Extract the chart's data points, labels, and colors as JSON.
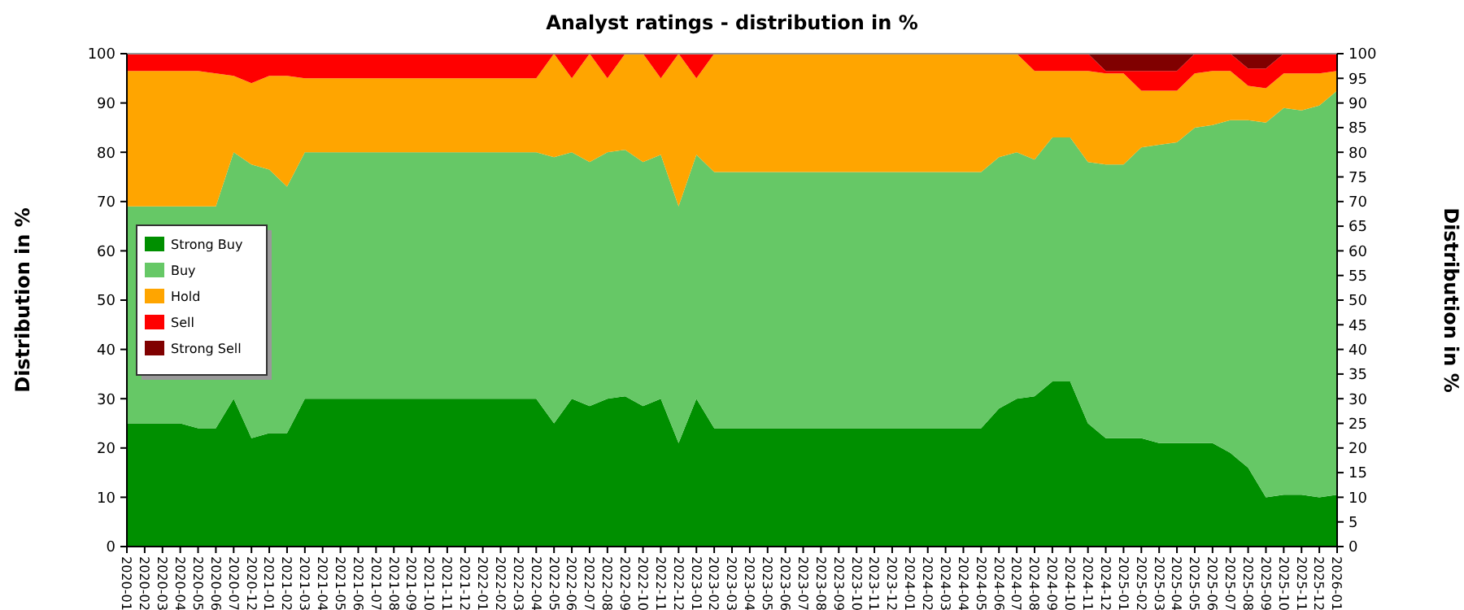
{
  "chart_data": {
    "type": "area",
    "stacked": true,
    "title": "Analyst ratings - distribution in %",
    "ylabel": "Distribution in %",
    "y2label": "Distribution in %",
    "categories": [
      "2020-01",
      "2020-02",
      "2020-03",
      "2020-04",
      "2020-05",
      "2020-06",
      "2020-07",
      "2020-12",
      "2021-01",
      "2021-02",
      "2021-03",
      "2021-04",
      "2021-05",
      "2021-06",
      "2021-07",
      "2021-08",
      "2021-09",
      "2021-10",
      "2021-11",
      "2021-12",
      "2022-01",
      "2022-02",
      "2022-03",
      "2022-04",
      "2022-05",
      "2022-06",
      "2022-07",
      "2022-08",
      "2022-09",
      "2022-10",
      "2022-11",
      "2022-12",
      "2023-01",
      "2023-02",
      "2023-03",
      "2023-04",
      "2023-05",
      "2023-06",
      "2023-07",
      "2023-08",
      "2023-09",
      "2023-10",
      "2023-11",
      "2023-12",
      "2024-01",
      "2024-02",
      "2024-03",
      "2024-04",
      "2024-05",
      "2024-06",
      "2024-07",
      "2024-08",
      "2024-09",
      "2024-10",
      "2024-11",
      "2024-12",
      "2025-01",
      "2025-02",
      "2025-03",
      "2025-04",
      "2025-05",
      "2025-06",
      "2025-07",
      "2025-08",
      "2025-09",
      "2025-10",
      "2025-11",
      "2025-12",
      "2026-01"
    ],
    "series": [
      {
        "name": "Strong Buy",
        "color": "#008f00",
        "values": [
          25,
          25,
          25,
          25,
          24,
          24,
          30,
          22,
          23,
          23,
          30,
          30,
          30,
          30,
          30,
          30,
          30,
          30,
          30,
          30,
          30,
          30,
          30,
          30,
          25,
          30,
          28.5,
          30,
          30.5,
          28.5,
          30,
          21,
          30,
          24,
          24,
          24,
          24,
          24,
          24,
          24,
          24,
          24,
          24,
          24,
          24,
          24,
          24,
          24,
          24,
          28,
          30,
          30.5,
          33.5,
          33.5,
          25,
          22,
          22,
          22,
          21,
          21,
          21,
          21,
          19,
          16,
          10,
          10.5,
          10.5,
          10,
          10.5
        ]
      },
      {
        "name": "Buy",
        "color": "#66c866",
        "values": [
          44,
          44,
          44,
          44,
          45,
          45,
          50,
          55.5,
          53.5,
          50,
          50,
          50,
          50,
          50,
          50,
          50,
          50,
          50,
          50,
          50,
          50,
          50,
          50,
          50,
          54,
          50,
          49.5,
          50,
          50,
          49.5,
          49.5,
          48,
          49.5,
          52,
          52,
          52,
          52,
          52,
          52,
          52,
          52,
          52,
          52,
          52,
          52,
          52,
          52,
          52,
          52,
          51,
          50,
          48,
          49.5,
          49.5,
          53,
          55.5,
          55.5,
          59,
          60.5,
          61,
          64,
          64.5,
          67.5,
          70.5,
          76,
          78.5,
          78,
          79.5,
          82
        ]
      },
      {
        "name": "Hold",
        "color": "#ffa500",
        "values": [
          27.5,
          27.5,
          27.5,
          27.5,
          27.5,
          27,
          15.5,
          16.5,
          19,
          22.5,
          15,
          15,
          15,
          15,
          15,
          15,
          15,
          15,
          15,
          15,
          15,
          15,
          15,
          15,
          21,
          15,
          22,
          15,
          19.5,
          22,
          15.5,
          31,
          15.5,
          24,
          24,
          24,
          24,
          24,
          24,
          24,
          24,
          24,
          24,
          24,
          24,
          24,
          24,
          24,
          24,
          21,
          20,
          18,
          13.5,
          13.5,
          18.5,
          18.5,
          18.5,
          11.5,
          11,
          10.5,
          11,
          11,
          10,
          7,
          7,
          7,
          7.5,
          6.5,
          4
        ]
      },
      {
        "name": "Sell",
        "color": "#ff0000",
        "values": [
          3.5,
          3.5,
          3.5,
          3.5,
          3.5,
          4,
          4.5,
          6,
          4.5,
          4.5,
          5,
          5,
          5,
          5,
          5,
          5,
          5,
          5,
          5,
          5,
          5,
          5,
          5,
          5,
          0,
          5,
          0,
          5,
          0,
          0,
          5,
          0,
          5,
          0,
          0,
          0,
          0,
          0,
          0,
          0,
          0,
          0,
          0,
          0,
          0,
          0,
          0,
          0,
          0,
          0,
          0,
          3.5,
          3.5,
          3.5,
          3.5,
          0.5,
          0.5,
          4,
          4,
          4,
          4,
          3.5,
          3.5,
          3.5,
          4,
          4,
          4,
          4,
          3.5
        ]
      },
      {
        "name": "Strong Sell",
        "color": "#800000",
        "values": [
          0,
          0,
          0,
          0,
          0,
          0,
          0,
          0,
          0,
          0,
          0,
          0,
          0,
          0,
          0,
          0,
          0,
          0,
          0,
          0,
          0,
          0,
          0,
          0,
          0,
          0,
          0,
          0,
          0,
          0,
          0,
          0,
          0,
          0,
          0,
          0,
          0,
          0,
          0,
          0,
          0,
          0,
          0,
          0,
          0,
          0,
          0,
          0,
          0,
          0,
          0,
          0,
          0,
          0,
          0,
          3.5,
          3.5,
          3.5,
          3.5,
          3.5,
          0,
          0,
          0,
          3,
          3,
          0,
          0,
          0,
          0
        ]
      }
    ],
    "ylim": [
      0,
      100
    ],
    "yticks": [
      0,
      10,
      20,
      30,
      40,
      50,
      60,
      70,
      80,
      90,
      100
    ],
    "y2lim": [
      0,
      100
    ],
    "y2ticks": [
      0,
      5,
      10,
      15,
      20,
      25,
      30,
      35,
      40,
      45,
      50,
      55,
      60,
      65,
      70,
      75,
      80,
      85,
      90,
      95,
      100
    ],
    "grid": "y",
    "legend": "left"
  }
}
